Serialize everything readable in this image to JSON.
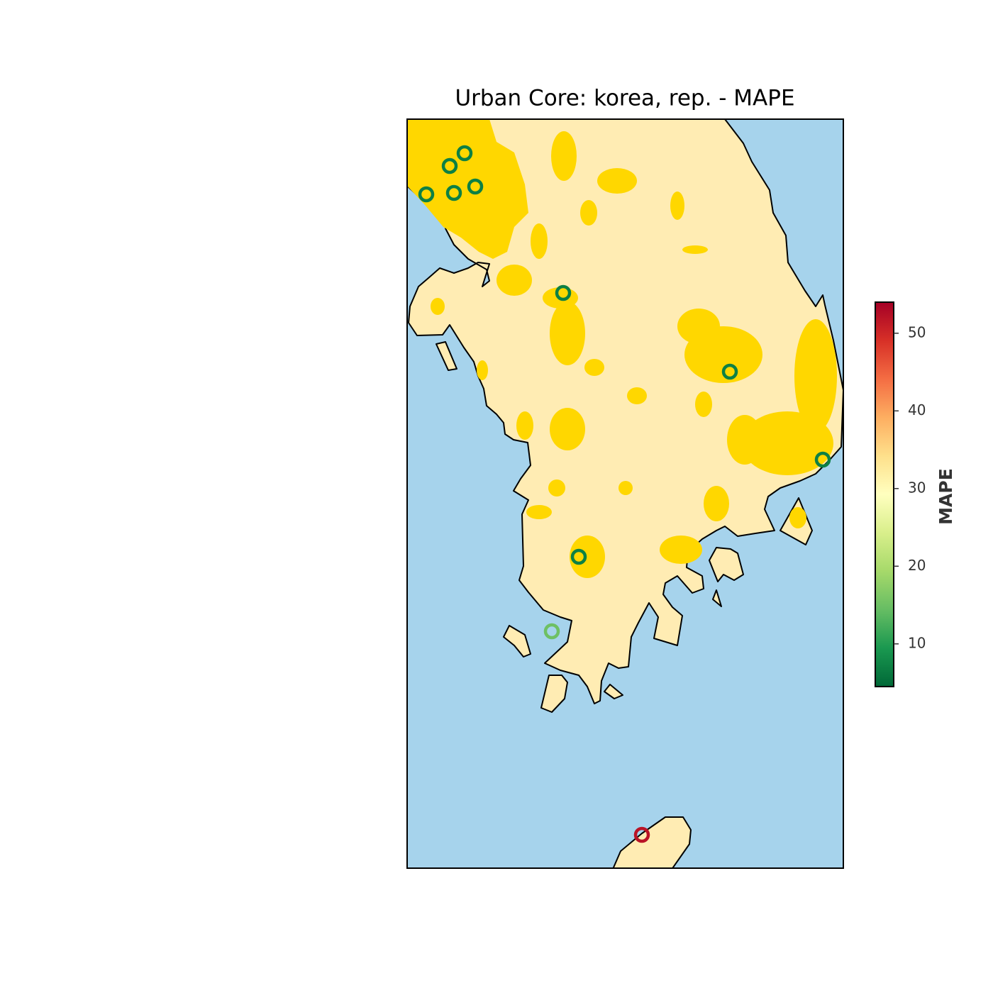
{
  "chart_data": {
    "type": "map",
    "title": "Urban Core: korea, rep. - MAPE",
    "colorbar_label": "MAPE",
    "clim": [
      4.5,
      54
    ],
    "cticks": [
      10,
      20,
      30,
      40,
      50
    ],
    "values": [
      7,
      7,
      7,
      7,
      7,
      7,
      7,
      7,
      7,
      15,
      52
    ]
  }
}
